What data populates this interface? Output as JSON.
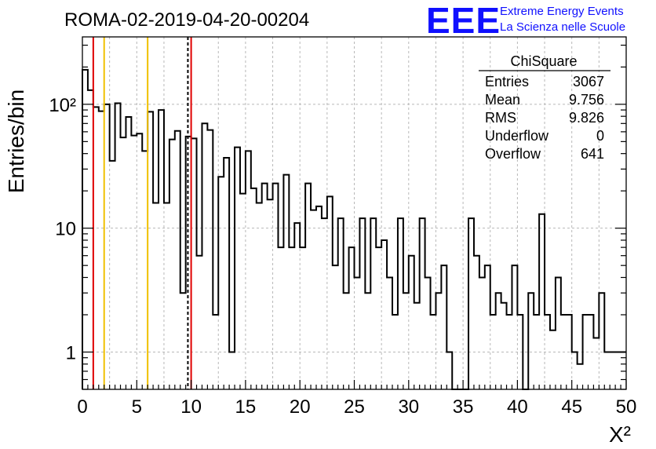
{
  "header": {
    "run_title": "ROMA-02-2019-04-20-00204",
    "logo_text": "EEE",
    "org_line1": "Extreme Energy Events",
    "org_line2": "La Scienza nelle Scuole"
  },
  "stats": {
    "title": "ChiSquare",
    "rows": [
      {
        "label": "Entries",
        "value": "3067"
      },
      {
        "label": "Mean",
        "value": "9.756"
      },
      {
        "label": "RMS",
        "value": "9.826"
      },
      {
        "label": "Underflow",
        "value": "0"
      },
      {
        "label": "Overflow",
        "value": "641"
      }
    ]
  },
  "chart_data": {
    "type": "bar",
    "histogram": true,
    "xlabel": "X²",
    "ylabel": "Entries/bin",
    "xlim": [
      0,
      50
    ],
    "ylim": [
      0.5,
      350
    ],
    "yscale": "log",
    "grid": true,
    "bin_width": 0.5,
    "x_ticks": [
      "0",
      "5",
      "10",
      "15",
      "20",
      "25",
      "30",
      "35",
      "40",
      "45",
      "50"
    ],
    "y_ticks": [
      "1",
      "10",
      "10²"
    ],
    "bin_edges_start": 0,
    "values": [
      190,
      130,
      95,
      88,
      100,
      35,
      102,
      54,
      79,
      56,
      58,
      42,
      87,
      16,
      90,
      16,
      52,
      61,
      3,
      55,
      53,
      6,
      70,
      62,
      2,
      26,
      37,
      1,
      45,
      19,
      42,
      21,
      16,
      23,
      17,
      23,
      7,
      27,
      7,
      11,
      7,
      23,
      14,
      15,
      12,
      18,
      5,
      12,
      3,
      7,
      4,
      12,
      3,
      12,
      7,
      8,
      4,
      2,
      12,
      3,
      6,
      2.5,
      12,
      4,
      2,
      3,
      5,
      1,
      0.5,
      0.5,
      0.5,
      12,
      6,
      4,
      5,
      2,
      3,
      2.5,
      2,
      5,
      2,
      0.5,
      3,
      2,
      13,
      2,
      1.5,
      4,
      2,
      2,
      1,
      0.8,
      2,
      2,
      1.3,
      3,
      1,
      1,
      1,
      1
    ],
    "reference_lines": [
      {
        "x": 1,
        "color": "#e00000",
        "style": "solid"
      },
      {
        "x": 2,
        "color": "#f0c000",
        "style": "solid"
      },
      {
        "x": 6,
        "color": "#f0c000",
        "style": "solid"
      },
      {
        "x": 9.7,
        "color": "#000000",
        "style": "dashed"
      },
      {
        "x": 10,
        "color": "#e00000",
        "style": "solid"
      }
    ],
    "colors": {
      "histogram": "#000000",
      "logo": "#1010ff"
    }
  }
}
